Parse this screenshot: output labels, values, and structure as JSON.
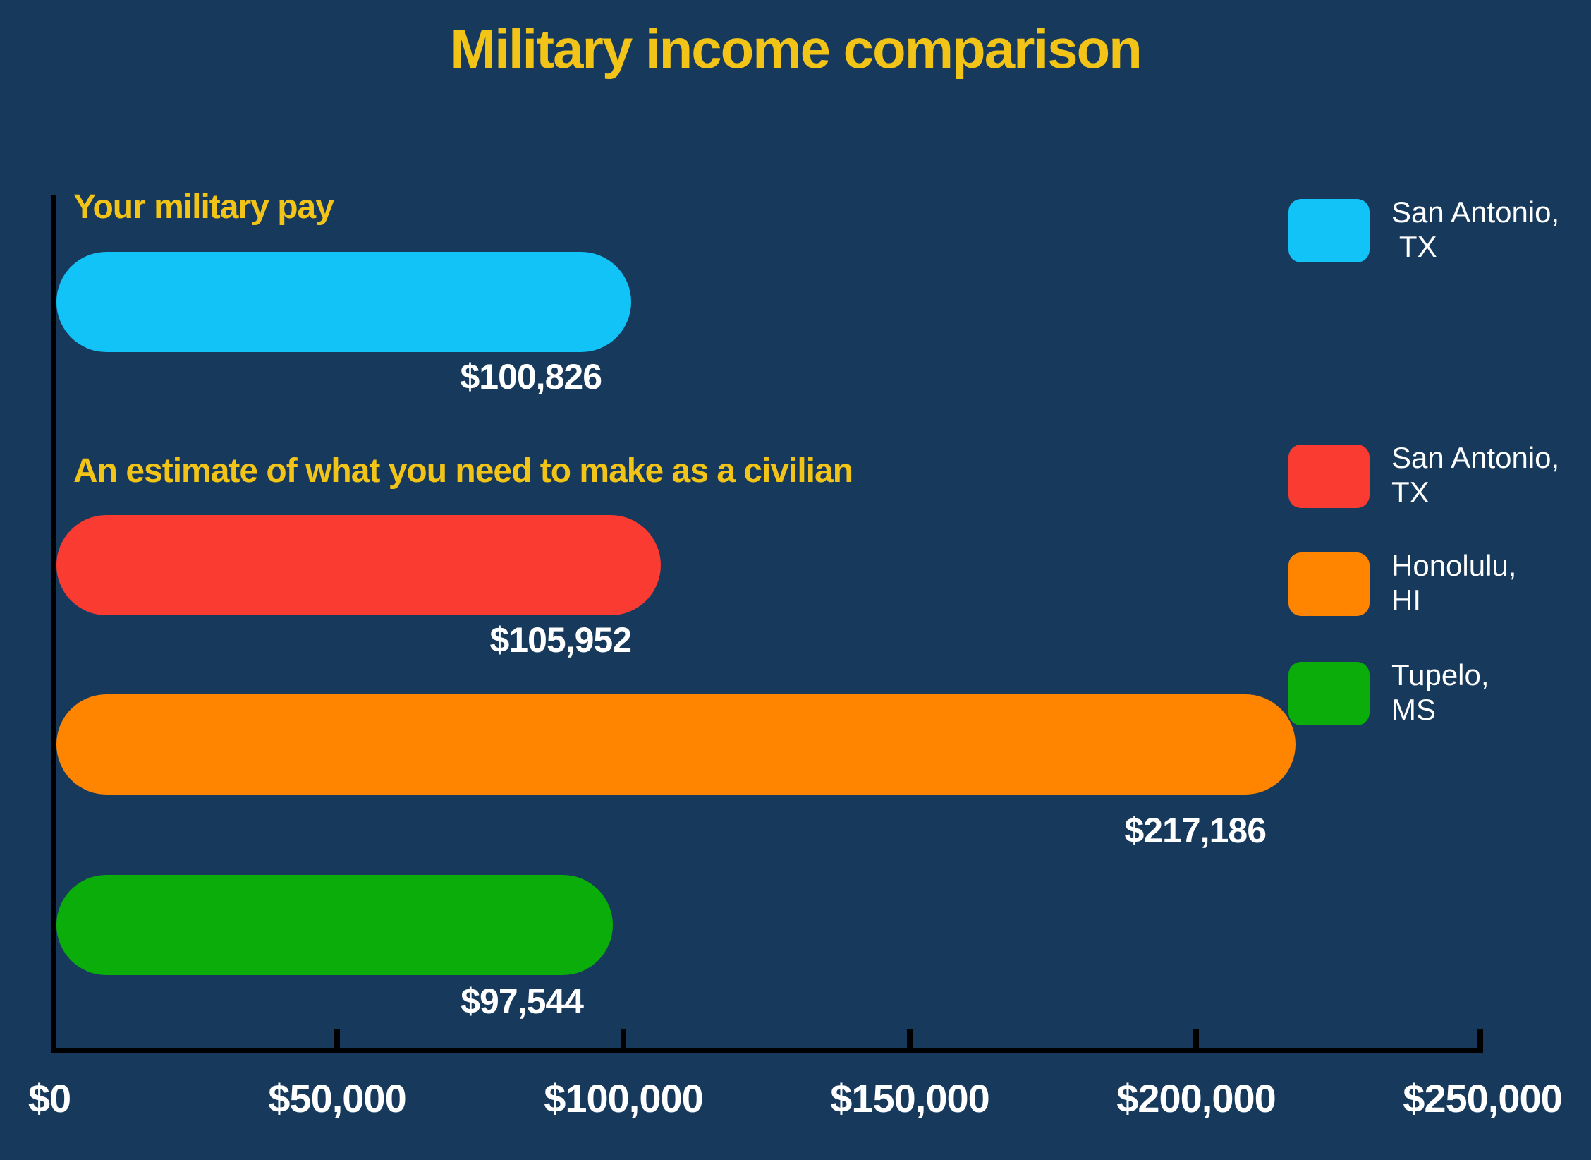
{
  "page": {
    "background_color": "#17395C",
    "accent_gold": "#F2C417",
    "text_white": "#FFFFFF",
    "axis_color": "#000000"
  },
  "chart_data": {
    "type": "bar",
    "orientation": "horizontal",
    "title": "Military income comparison",
    "xlabel": "",
    "ylabel": "",
    "xlim": [
      0,
      250000
    ],
    "x_ticks": [
      0,
      50000,
      100000,
      150000,
      200000,
      250000
    ],
    "x_tick_labels": [
      "$0",
      "$50,000",
      "$100,000",
      "$150,000",
      "$200,000",
      "$250,000"
    ],
    "grid": false,
    "legend_position": "right",
    "bar_corner_style": "pill",
    "bars": [
      {
        "group_label": "Your military pay",
        "location": "San Antonio, TX",
        "value": 100826,
        "value_label": "$100,826",
        "color": "#12C3F7"
      },
      {
        "group_label": "An estimate of what you need to make as a civilian",
        "location": "San Antonio, TX",
        "value": 105952,
        "value_label": "$105,952",
        "color": "#FA3B31"
      },
      {
        "location": "Honolulu, HI",
        "value": 217186,
        "value_label": "$217,186",
        "color": "#FF8400"
      },
      {
        "location": "Tupelo, MS",
        "value": 97544,
        "value_label": "$97,544",
        "color": "#0BAD0B"
      }
    ],
    "legend": [
      {
        "line1": "San Antonio,",
        "line2": " TX",
        "color": "#12C3F7"
      },
      {
        "line1": "San Antonio,",
        "line2": "TX",
        "color": "#FA3B31"
      },
      {
        "line1": "Honolulu,",
        "line2": "HI",
        "color": "#FF8400"
      },
      {
        "line1": "Tupelo,",
        "line2": "MS",
        "color": "#0BAD0B"
      }
    ]
  }
}
